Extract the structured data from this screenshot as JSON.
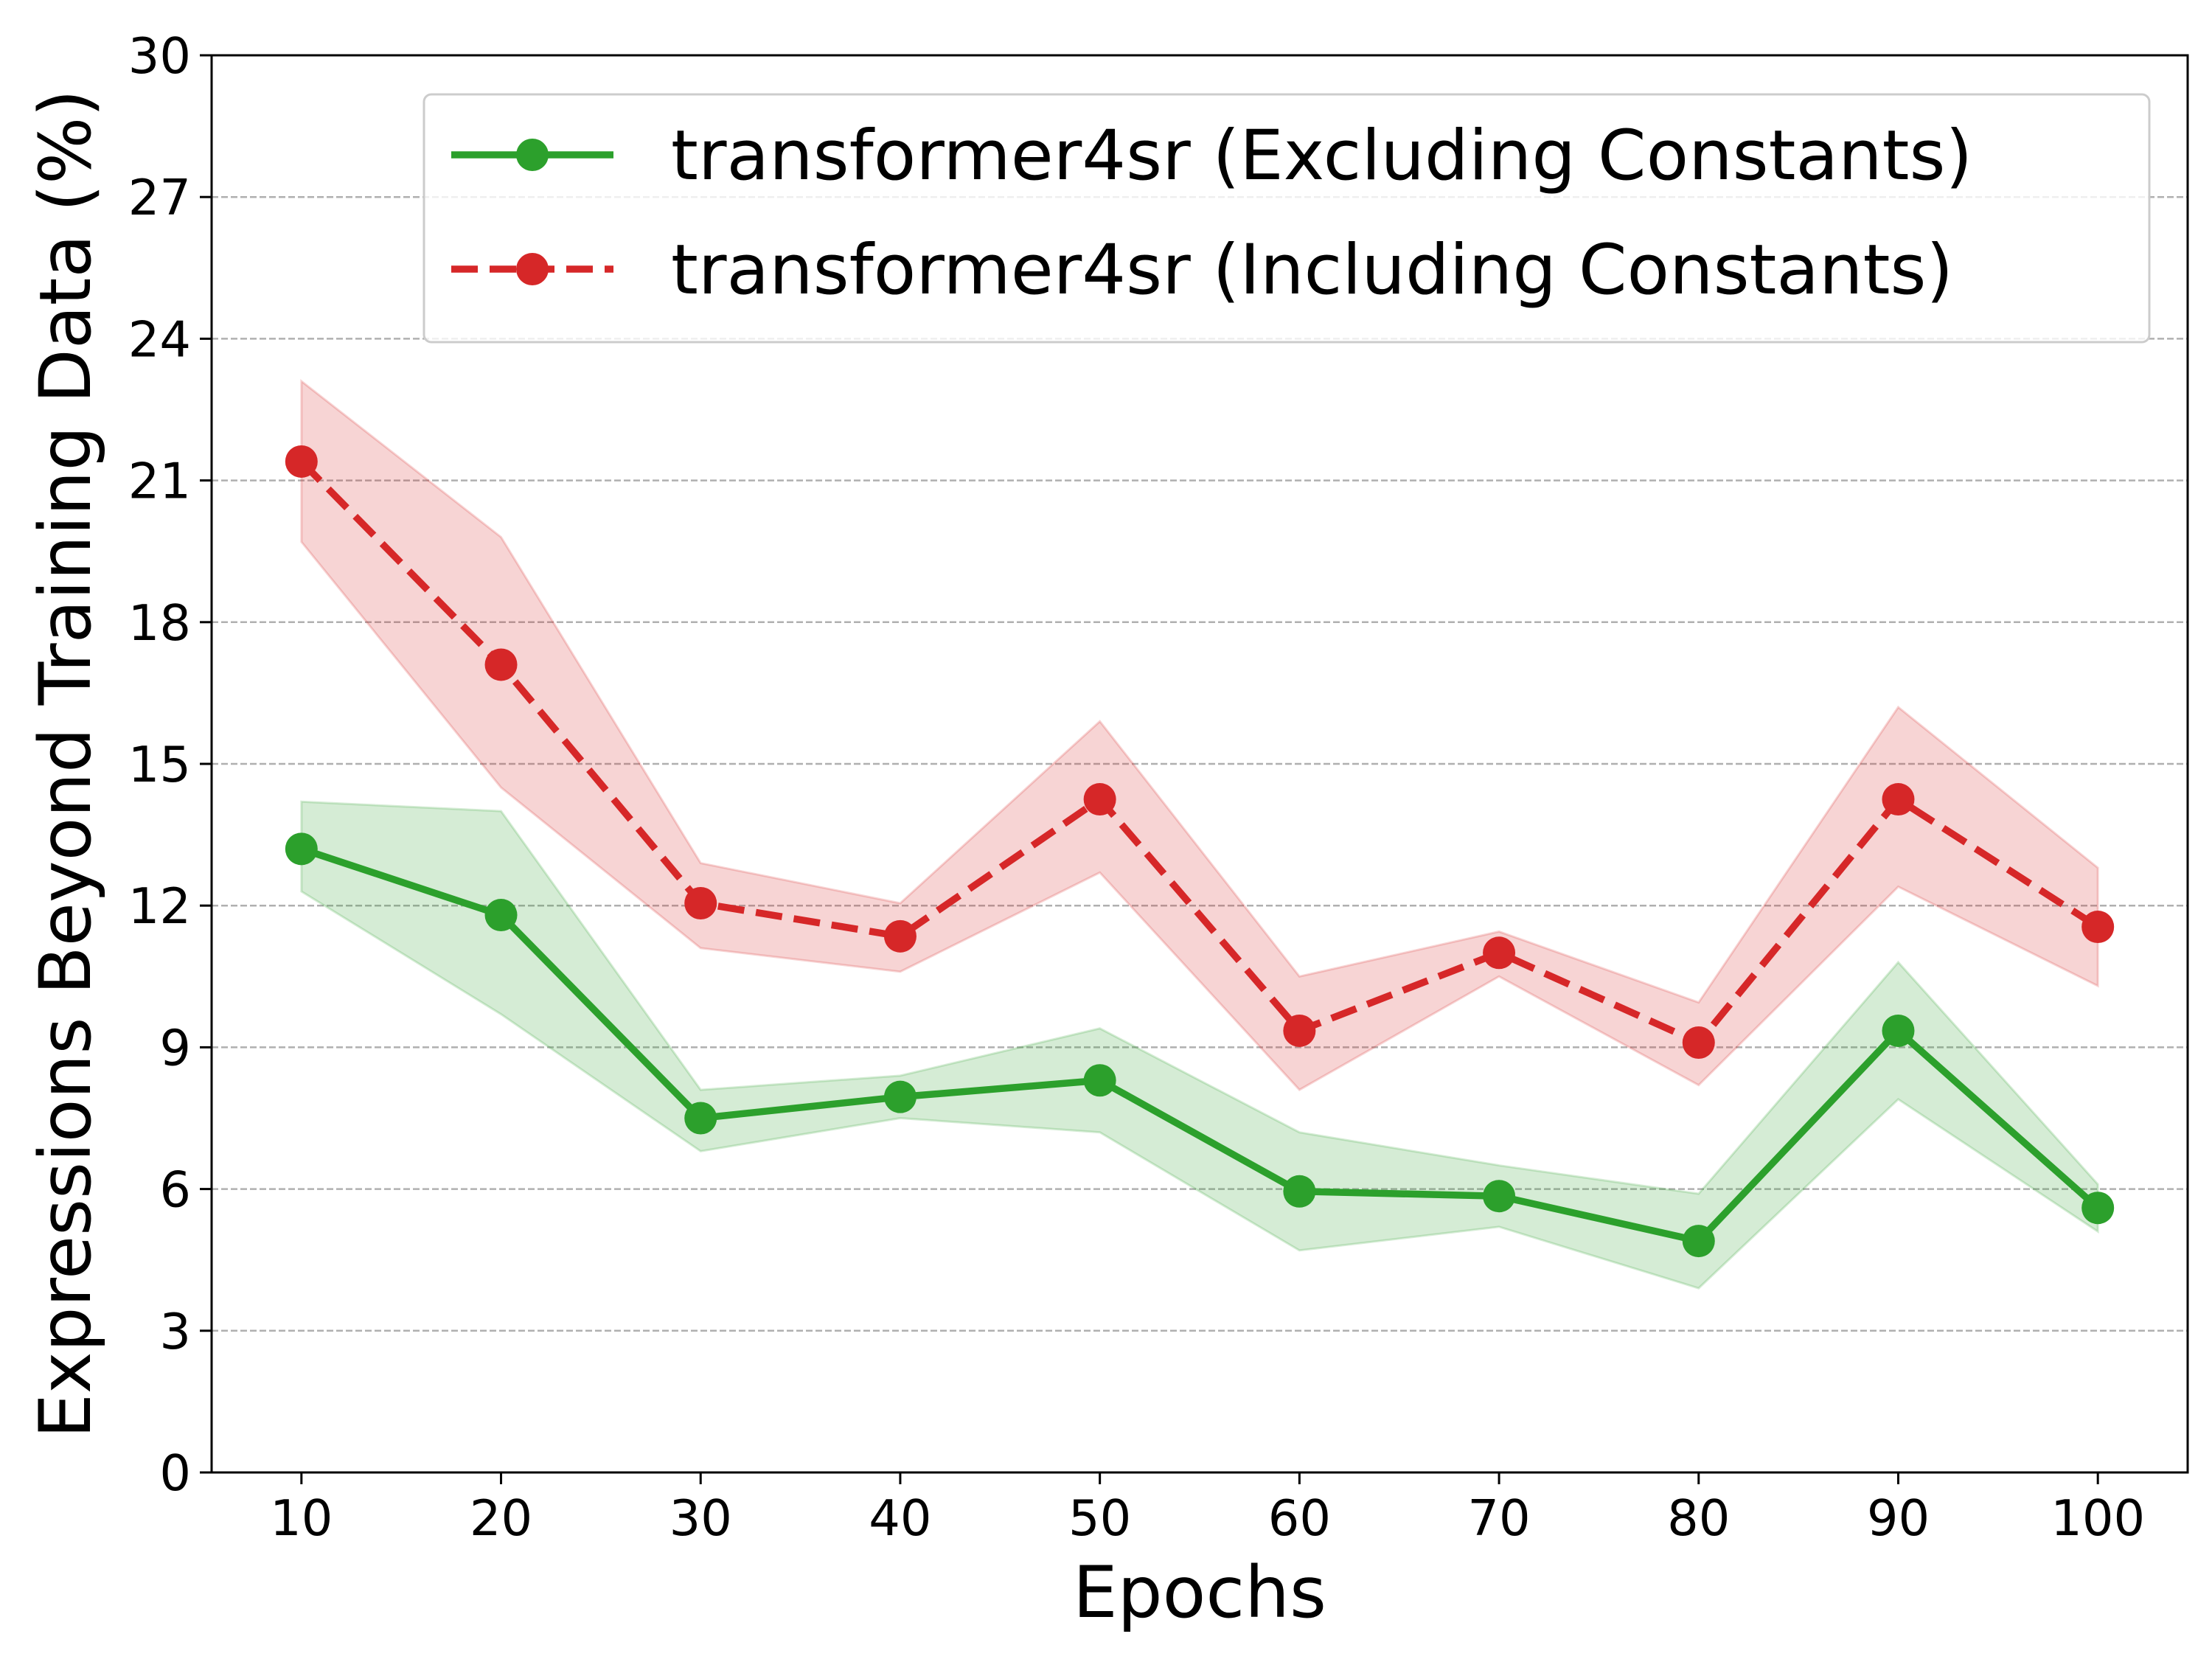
{
  "chart_data": {
    "type": "line",
    "xlabel": "Epochs",
    "ylabel": "Expressions Beyond Training Data (%)",
    "x": [
      10,
      20,
      30,
      40,
      50,
      60,
      70,
      80,
      90,
      100
    ],
    "xticks": [
      10,
      20,
      30,
      40,
      50,
      60,
      70,
      80,
      90,
      100
    ],
    "yticks": [
      0,
      3,
      6,
      9,
      12,
      15,
      18,
      21,
      24,
      27,
      30
    ],
    "xlim": [
      5.5,
      104.5
    ],
    "ylim": [
      0,
      30
    ],
    "grid": "horizontal dashed",
    "legend": "top-right",
    "series": [
      {
        "name": "transformer4sr (Excluding Constants)",
        "color": "#2ca02c",
        "linestyle": "solid",
        "marker": "circle",
        "values": [
          13.2,
          11.8,
          7.5,
          7.95,
          8.3,
          5.95,
          5.85,
          4.9,
          9.35,
          5.6
        ],
        "lower": [
          12.3,
          9.7,
          6.8,
          7.5,
          7.2,
          4.7,
          5.2,
          3.9,
          7.9,
          5.1
        ],
        "upper": [
          14.2,
          14.0,
          8.1,
          8.4,
          9.4,
          7.2,
          6.5,
          5.9,
          10.8,
          6.1
        ]
      },
      {
        "name": "transformer4sr (Including Constants)",
        "color": "#d62728",
        "linestyle": "dashed",
        "marker": "circle",
        "values": [
          21.4,
          17.1,
          12.05,
          11.35,
          14.25,
          9.35,
          11.0,
          9.1,
          14.25,
          11.55
        ],
        "lower": [
          19.7,
          14.5,
          11.1,
          10.6,
          12.7,
          8.1,
          10.5,
          8.2,
          12.4,
          10.3
        ],
        "upper": [
          23.1,
          19.8,
          12.9,
          12.05,
          15.9,
          10.5,
          11.45,
          9.95,
          16.2,
          12.8
        ]
      }
    ]
  }
}
